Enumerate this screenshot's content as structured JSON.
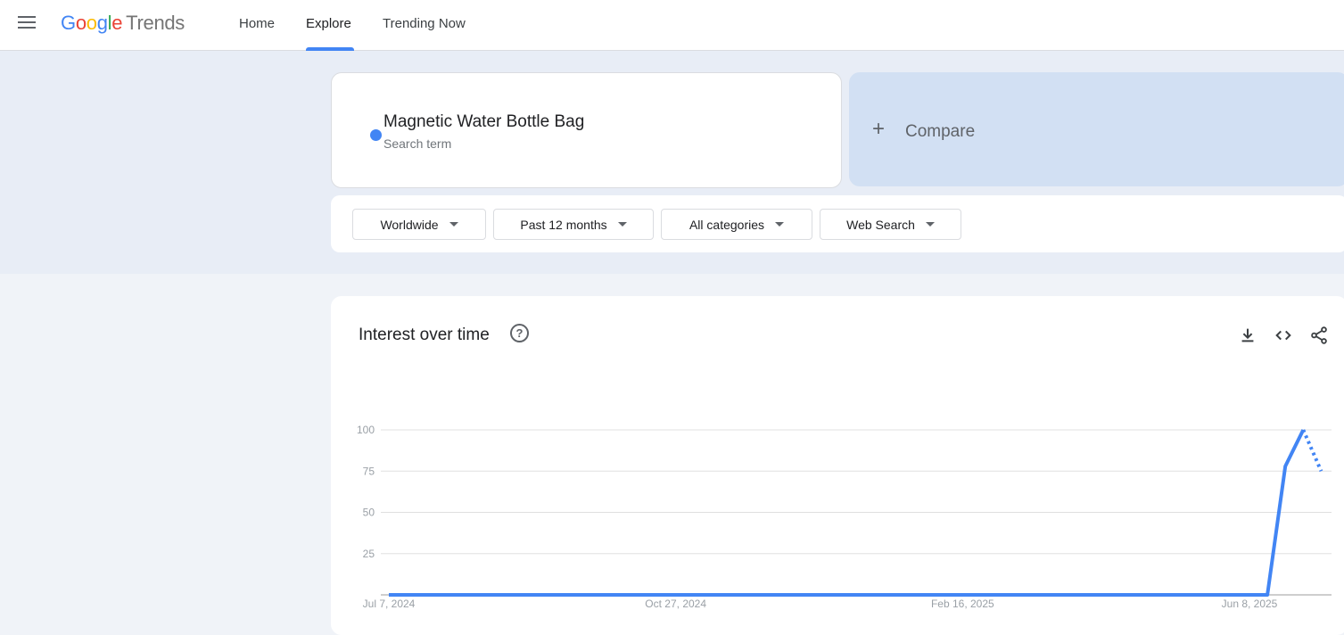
{
  "header": {
    "logo": {
      "google": "Google",
      "product": "Trends"
    },
    "nav": [
      {
        "label": "Home"
      },
      {
        "label": "Explore",
        "active": true
      },
      {
        "label": "Trending Now"
      }
    ]
  },
  "search": {
    "term": "Magnetic Water Bottle Bag",
    "term_sub": "Search term",
    "term_color": "#4285f4",
    "compare_label": "Compare"
  },
  "filters": [
    {
      "label": "Worldwide"
    },
    {
      "label": "Past 12 months"
    },
    {
      "label": "All categories"
    },
    {
      "label": "Web Search"
    }
  ],
  "card": {
    "title": "Interest over time",
    "icons": [
      "download-icon",
      "embed-code-icon",
      "share-icon"
    ]
  },
  "chart_data": {
    "type": "line",
    "title": "Interest over time",
    "ylim": [
      0,
      100
    ],
    "yticks": [
      25,
      50,
      75,
      100
    ],
    "xtick_labels": [
      "Jul 7, 2024",
      "Oct 27, 2024",
      "Feb 16, 2025",
      "Jun 8, 2025"
    ],
    "grid": true,
    "color": "#4285f4",
    "x": [
      "2024-07-07",
      "2024-07-14",
      "2024-07-21",
      "2024-07-28",
      "2024-08-04",
      "2024-08-11",
      "2024-08-18",
      "2024-08-25",
      "2024-09-01",
      "2024-09-08",
      "2024-09-15",
      "2024-09-22",
      "2024-09-29",
      "2024-10-06",
      "2024-10-13",
      "2024-10-20",
      "2024-10-27",
      "2024-11-03",
      "2024-11-10",
      "2024-11-17",
      "2024-11-24",
      "2024-12-01",
      "2024-12-08",
      "2024-12-15",
      "2024-12-22",
      "2024-12-29",
      "2025-01-05",
      "2025-01-12",
      "2025-01-19",
      "2025-01-26",
      "2025-02-02",
      "2025-02-09",
      "2025-02-16",
      "2025-02-23",
      "2025-03-02",
      "2025-03-09",
      "2025-03-16",
      "2025-03-23",
      "2025-03-30",
      "2025-04-06",
      "2025-04-13",
      "2025-04-20",
      "2025-04-27",
      "2025-05-04",
      "2025-05-11",
      "2025-05-18",
      "2025-05-25",
      "2025-06-01",
      "2025-06-08",
      "2025-06-15",
      "2025-06-22",
      "2025-06-29",
      "2025-07-06"
    ],
    "values": [
      0,
      0,
      0,
      0,
      0,
      0,
      0,
      0,
      0,
      0,
      0,
      0,
      0,
      0,
      0,
      0,
      0,
      0,
      0,
      0,
      0,
      0,
      0,
      0,
      0,
      0,
      0,
      0,
      0,
      0,
      0,
      0,
      0,
      0,
      0,
      0,
      0,
      0,
      0,
      0,
      0,
      0,
      0,
      0,
      0,
      0,
      0,
      0,
      0,
      0,
      78,
      100,
      75
    ],
    "partial_last_point": true
  }
}
